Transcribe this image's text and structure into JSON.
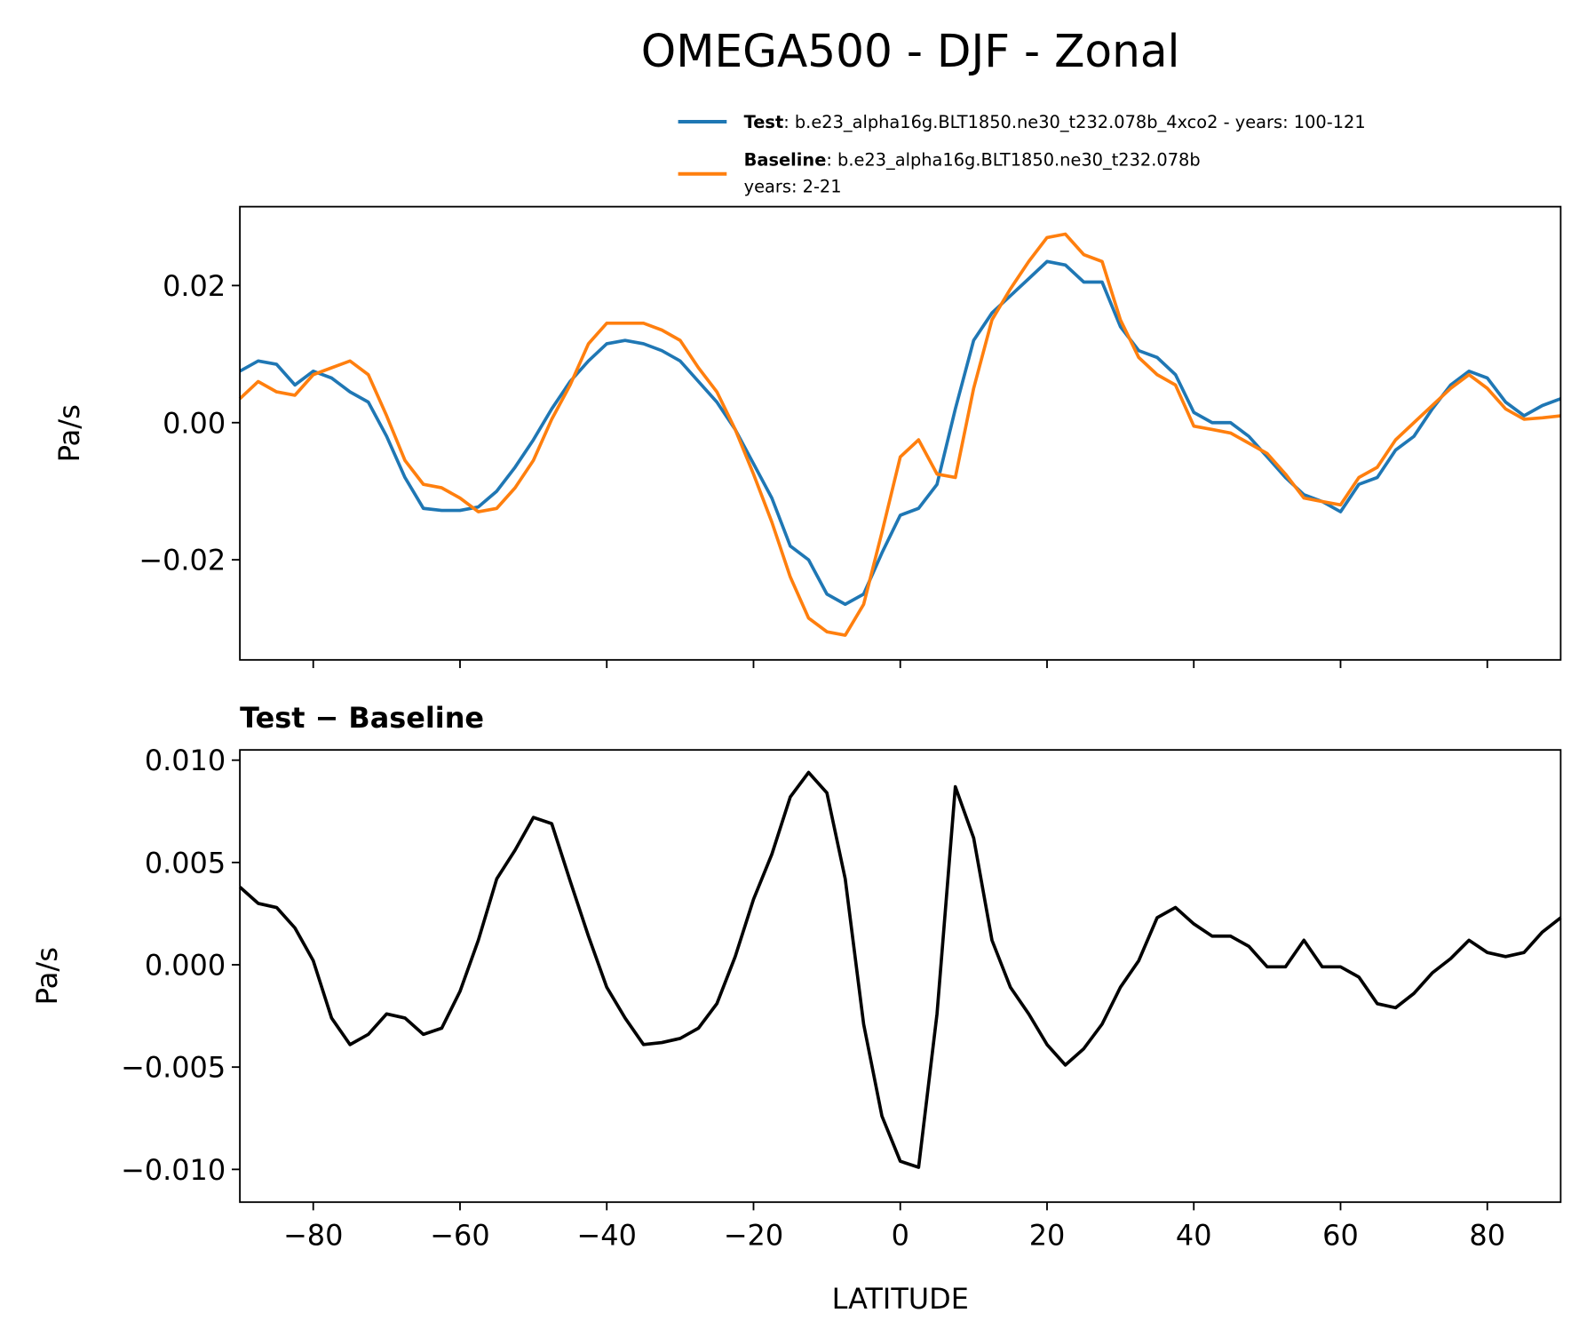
{
  "chart_data": [
    {
      "type": "line",
      "title": "OMEGA500 - DJF - Zonal",
      "ylabel": "Pa/s",
      "x": [
        -90,
        -87.5,
        -85,
        -82.5,
        -80,
        -77.5,
        -75,
        -72.5,
        -70,
        -67.5,
        -65,
        -62.5,
        -60,
        -57.5,
        -55,
        -52.5,
        -50,
        -47.5,
        -45,
        -42.5,
        -40,
        -37.5,
        -35,
        -32.5,
        -30,
        -27.5,
        -25,
        -22.5,
        -20,
        -17.5,
        -15,
        -12.5,
        -10,
        -7.5,
        -5,
        -2.5,
        0,
        2.5,
        5,
        7.5,
        10,
        12.5,
        15,
        17.5,
        20,
        22.5,
        25,
        27.5,
        30,
        32.5,
        35,
        37.5,
        40,
        42.5,
        45,
        47.5,
        50,
        52.5,
        55,
        57.5,
        60,
        62.5,
        65,
        67.5,
        70,
        72.5,
        75,
        77.5,
        80,
        82.5,
        85,
        87.5,
        90
      ],
      "series": [
        {
          "name": "Test",
          "description": [
            ": b.e23_alpha16g.BLT1850.ne30_t232.078b_4xco2 - years: 100-121"
          ],
          "color": "#1f77b4",
          "values": [
            0.0075,
            0.009,
            0.0085,
            0.0055,
            0.0075,
            0.0065,
            0.0045,
            0.003,
            -0.002,
            -0.008,
            -0.0125,
            -0.0128,
            -0.0128,
            -0.0123,
            -0.01,
            -0.0065,
            -0.0025,
            0.002,
            0.006,
            0.009,
            0.0115,
            0.012,
            0.0115,
            0.0105,
            0.009,
            0.006,
            0.003,
            -0.001,
            -0.006,
            -0.011,
            -0.018,
            -0.02,
            -0.025,
            -0.0265,
            -0.025,
            -0.019,
            -0.0135,
            -0.0125,
            -0.009,
            0.002,
            0.012,
            0.016,
            0.0185,
            0.021,
            0.0235,
            0.023,
            0.0205,
            0.0205,
            0.014,
            0.0105,
            0.0095,
            0.007,
            0.0015,
            0.0,
            0.0,
            -0.002,
            -0.005,
            -0.008,
            -0.0105,
            -0.0115,
            -0.013,
            -0.009,
            -0.008,
            -0.004,
            -0.002,
            0.002,
            0.0055,
            0.0075,
            0.0065,
            0.003,
            0.001,
            0.0025,
            0.0035
          ]
        },
        {
          "name": "Baseline",
          "description": [
            ": b.e23_alpha16g.BLT1850.ne30_t232.078b",
            "years: 2-21"
          ],
          "color": "#ff7f0e",
          "values": [
            0.0035,
            0.006,
            0.0045,
            0.004,
            0.007,
            0.008,
            0.009,
            0.007,
            0.001,
            -0.0055,
            -0.009,
            -0.0095,
            -0.011,
            -0.013,
            -0.0125,
            -0.0095,
            -0.0055,
            0.0005,
            0.0055,
            0.0115,
            0.0145,
            0.0145,
            0.0145,
            0.0135,
            0.012,
            0.008,
            0.0045,
            -0.001,
            -0.0075,
            -0.0145,
            -0.0225,
            -0.0285,
            -0.0305,
            -0.031,
            -0.0265,
            -0.016,
            -0.005,
            -0.0025,
            -0.0075,
            -0.008,
            0.005,
            0.015,
            0.0195,
            0.0235,
            0.027,
            0.0275,
            0.0245,
            0.0235,
            0.015,
            0.0095,
            0.007,
            0.0055,
            -0.0005,
            -0.001,
            -0.0015,
            -0.003,
            -0.0045,
            -0.0075,
            -0.011,
            -0.0115,
            -0.012,
            -0.008,
            -0.0065,
            -0.0025,
            0.0,
            0.0025,
            0.005,
            0.007,
            0.005,
            0.002,
            0.0005,
            0.0007,
            0.001
          ]
        }
      ],
      "xlim": [
        -90,
        90
      ],
      "xticks": [
        -80,
        -60,
        -40,
        -20,
        0,
        20,
        40,
        60,
        80
      ],
      "ylim": [
        -0.0346,
        0.0315
      ],
      "yticks": [
        {
          "value": -0.02,
          "label": "−0.02"
        },
        {
          "value": 0,
          "label": "0.00"
        },
        {
          "value": 0.02,
          "label": "0.02"
        }
      ]
    },
    {
      "type": "line",
      "title": "Test − Baseline",
      "ylabel": "Pa/s",
      "xlabel": "LATITUDE",
      "color": "#000000",
      "x": [
        -90,
        -87.5,
        -85,
        -82.5,
        -80,
        -77.5,
        -75,
        -72.5,
        -70,
        -67.5,
        -65,
        -62.5,
        -60,
        -57.5,
        -55,
        -52.5,
        -50,
        -47.5,
        -45,
        -42.5,
        -40,
        -37.5,
        -35,
        -32.5,
        -30,
        -27.5,
        -25,
        -22.5,
        -20,
        -17.5,
        -15,
        -12.5,
        -10,
        -7.5,
        -5,
        -2.5,
        0,
        2.5,
        5,
        7.5,
        10,
        12.5,
        15,
        17.5,
        20,
        22.5,
        25,
        27.5,
        30,
        32.5,
        35,
        37.5,
        40,
        42.5,
        45,
        47.5,
        50,
        52.5,
        55,
        57.5,
        60,
        62.5,
        65,
        67.5,
        70,
        72.5,
        75,
        77.5,
        80,
        82.5,
        85,
        87.5,
        90
      ],
      "values": [
        0.0038,
        0.003,
        0.0028,
        0.0018,
        0.0002,
        -0.0026,
        -0.0039,
        -0.0034,
        -0.0024,
        -0.0026,
        -0.0034,
        -0.0031,
        -0.0013,
        0.0012,
        0.0042,
        0.0056,
        0.0072,
        0.0069,
        0.0041,
        0.0014,
        -0.0011,
        -0.0026,
        -0.0039,
        -0.0038,
        -0.0036,
        -0.0031,
        -0.0019,
        0.0004,
        0.0032,
        0.0054,
        0.0082,
        0.0094,
        0.0084,
        0.0042,
        -0.0029,
        -0.0074,
        -0.0096,
        -0.0099,
        -0.0024,
        0.0087,
        0.0062,
        0.0012,
        -0.0011,
        -0.0024,
        -0.0039,
        -0.0049,
        -0.0041,
        -0.0029,
        -0.0011,
        0.0002,
        0.0023,
        0.0028,
        0.002,
        0.0014,
        0.0014,
        0.0009,
        -0.0001,
        -0.0001,
        0.0012,
        -0.0001,
        -0.0001,
        -0.0006,
        -0.0019,
        -0.0021,
        -0.0014,
        -0.0004,
        0.0003,
        0.0012,
        0.0006,
        0.0004,
        0.0006,
        0.0016,
        0.0023
      ],
      "xlim": [
        -90,
        90
      ],
      "xticks": [
        {
          "value": -80,
          "label": "−80"
        },
        {
          "value": -60,
          "label": "−60"
        },
        {
          "value": -40,
          "label": "−40"
        },
        {
          "value": -20,
          "label": "−20"
        },
        0,
        20,
        40,
        60,
        80
      ],
      "ylim": [
        -0.0116,
        0.0105
      ],
      "yticks": [
        {
          "value": -0.01,
          "label": "−0.010"
        },
        {
          "value": -0.005,
          "label": "−0.005"
        },
        {
          "value": 0,
          "label": "0.000"
        },
        {
          "value": 0.005,
          "label": "0.005"
        },
        {
          "value": 0.01,
          "label": "0.010"
        }
      ]
    }
  ]
}
